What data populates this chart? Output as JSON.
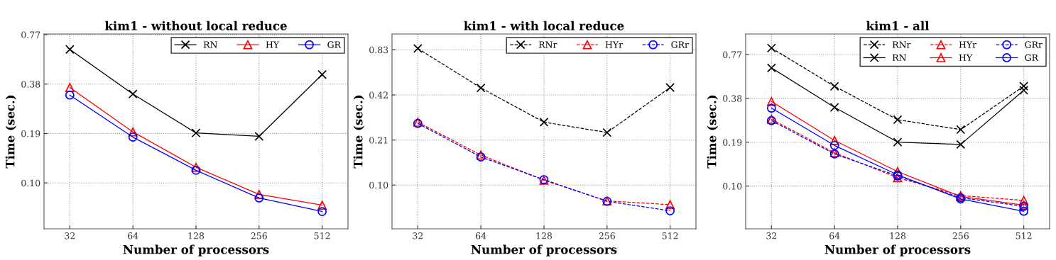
{
  "chart_data": [
    {
      "type": "line",
      "title": "kim1 - without local reduce",
      "xlabel": "Number of processors",
      "ylabel": "Time (sec.)",
      "x": [
        32,
        64,
        128,
        256,
        512
      ],
      "xlim": [
        24.1,
        680
      ],
      "xticks": [
        32,
        64,
        128,
        256,
        512
      ],
      "log": "xy",
      "ylim": [
        0.0506,
        0.777
      ],
      "yticks": [
        {
          "value": 0.0963,
          "label": "0.10"
        },
        {
          "value": 0.1925,
          "label": "0.19"
        },
        {
          "value": 0.385,
          "label": "0.38"
        },
        {
          "value": 0.77,
          "label": "0.77"
        }
      ],
      "grid": true,
      "legend": "top right",
      "series": [
        {
          "name": "RN",
          "color": "#000000",
          "marker": "cross",
          "line_style": "solid",
          "values": [
            0.626,
            0.335,
            0.194,
            0.185,
            0.44
          ]
        },
        {
          "name": "HY",
          "color": "#ff0000",
          "marker": "triangle",
          "line_style": "solid",
          "values": [
            0.367,
            0.197,
            0.12,
            0.082,
            0.0705
          ]
        },
        {
          "name": "GR",
          "color": "#0000ff",
          "marker": "circle",
          "line_style": "solid",
          "values": [
            0.33,
            0.183,
            0.115,
            0.078,
            0.0645
          ]
        }
      ]
    },
    {
      "type": "line",
      "title": "kim1 - with local reduce",
      "xlabel": "Number of processors",
      "ylabel": "Time (sec.)",
      "x": [
        32,
        64,
        128,
        256,
        512
      ],
      "xlim": [
        24.1,
        680
      ],
      "xticks": [
        32,
        64,
        128,
        256,
        512
      ],
      "log": "xy",
      "ylim": [
        0.0531,
        1.057
      ],
      "yticks": [
        {
          "value": 0.104,
          "label": "0.10"
        },
        {
          "value": 0.2075,
          "label": "0.21"
        },
        {
          "value": 0.415,
          "label": "0.42"
        },
        {
          "value": 0.83,
          "label": "0.83"
        }
      ],
      "grid": true,
      "legend": "top right",
      "series": [
        {
          "name": "RNr",
          "color": "#000000",
          "marker": "cross",
          "line_style": "dashed",
          "values": [
            0.847,
            0.462,
            0.273,
            0.233,
            0.465
          ]
        },
        {
          "name": "HYr",
          "color": "#ff0000",
          "marker": "triangle",
          "line_style": "dashed",
          "values": [
            0.273,
            0.165,
            0.112,
            0.0815,
            0.077
          ]
        },
        {
          "name": "GRr",
          "color": "#0000ff",
          "marker": "circle",
          "line_style": "dashed",
          "values": [
            0.268,
            0.16,
            0.113,
            0.081,
            0.07
          ]
        }
      ]
    },
    {
      "type": "line",
      "title": "kim1 - all",
      "xlabel": "Number of processors",
      "ylabel": "Time (sec.)",
      "x": [
        32,
        64,
        128,
        256,
        512
      ],
      "xlim": [
        24.1,
        680
      ],
      "xticks": [
        32,
        64,
        128,
        256,
        512
      ],
      "log": "xy",
      "ylim": [
        0.049,
        1.065
      ],
      "yticks": [
        {
          "value": 0.0963,
          "label": "0.10"
        },
        {
          "value": 0.1925,
          "label": "0.19"
        },
        {
          "value": 0.385,
          "label": "0.38"
        },
        {
          "value": 0.77,
          "label": "0.77"
        }
      ],
      "grid": true,
      "legend": "top right",
      "series": [
        {
          "name": "RNr",
          "color": "#000000",
          "marker": "cross",
          "line_style": "dashed",
          "values": [
            0.853,
            0.466,
            0.275,
            0.235,
            0.467
          ]
        },
        {
          "name": "RN",
          "color": "#000000",
          "marker": "cross",
          "line_style": "solid",
          "values": [
            0.623,
            0.334,
            0.193,
            0.186,
            0.438
          ]
        },
        {
          "name": "HYr",
          "color": "#ff0000",
          "marker": "triangle",
          "line_style": "dashed",
          "values": [
            0.277,
            0.163,
            0.11,
            0.0828,
            0.0768
          ]
        },
        {
          "name": "HY",
          "color": "#ff0000",
          "marker": "triangle",
          "line_style": "solid",
          "values": [
            0.366,
            0.198,
            0.121,
            0.0817,
            0.0713
          ]
        },
        {
          "name": "GRr",
          "color": "#0000ff",
          "marker": "circle",
          "line_style": "dashed",
          "values": [
            0.271,
            0.16,
            0.113,
            0.08,
            0.07
          ]
        },
        {
          "name": "GR",
          "color": "#0000ff",
          "marker": "circle",
          "line_style": "solid",
          "values": [
            0.33,
            0.183,
            0.115,
            0.0786,
            0.0647
          ]
        }
      ]
    }
  ]
}
